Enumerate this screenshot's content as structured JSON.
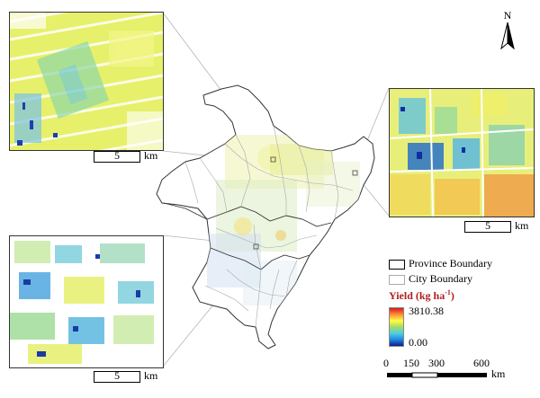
{
  "north_arrow": {
    "label": "N"
  },
  "insets": [
    {
      "id": "top-left",
      "scale_value": "5",
      "scale_unit": "km"
    },
    {
      "id": "right",
      "scale_value": "5",
      "scale_unit": "km"
    },
    {
      "id": "bottom-left",
      "scale_value": "5",
      "scale_unit": "km"
    }
  ],
  "legend": {
    "province_boundary": "Province Boundary",
    "city_boundary": "City Boundary",
    "yield_title_prefix": "Yield (kg ha",
    "yield_title_sup": "-1",
    "yield_title_suffix": ")",
    "max_value": "3810.38",
    "min_value": "0.00",
    "colors": [
      "#d7191c",
      "#fd8d3c",
      "#ffff40",
      "#a6d96a",
      "#4dd0e1",
      "#1e88e5",
      "#0d1b8c"
    ]
  },
  "scale_bar": {
    "ticks": [
      "0",
      "150",
      "300",
      "600"
    ],
    "unit": "km"
  }
}
